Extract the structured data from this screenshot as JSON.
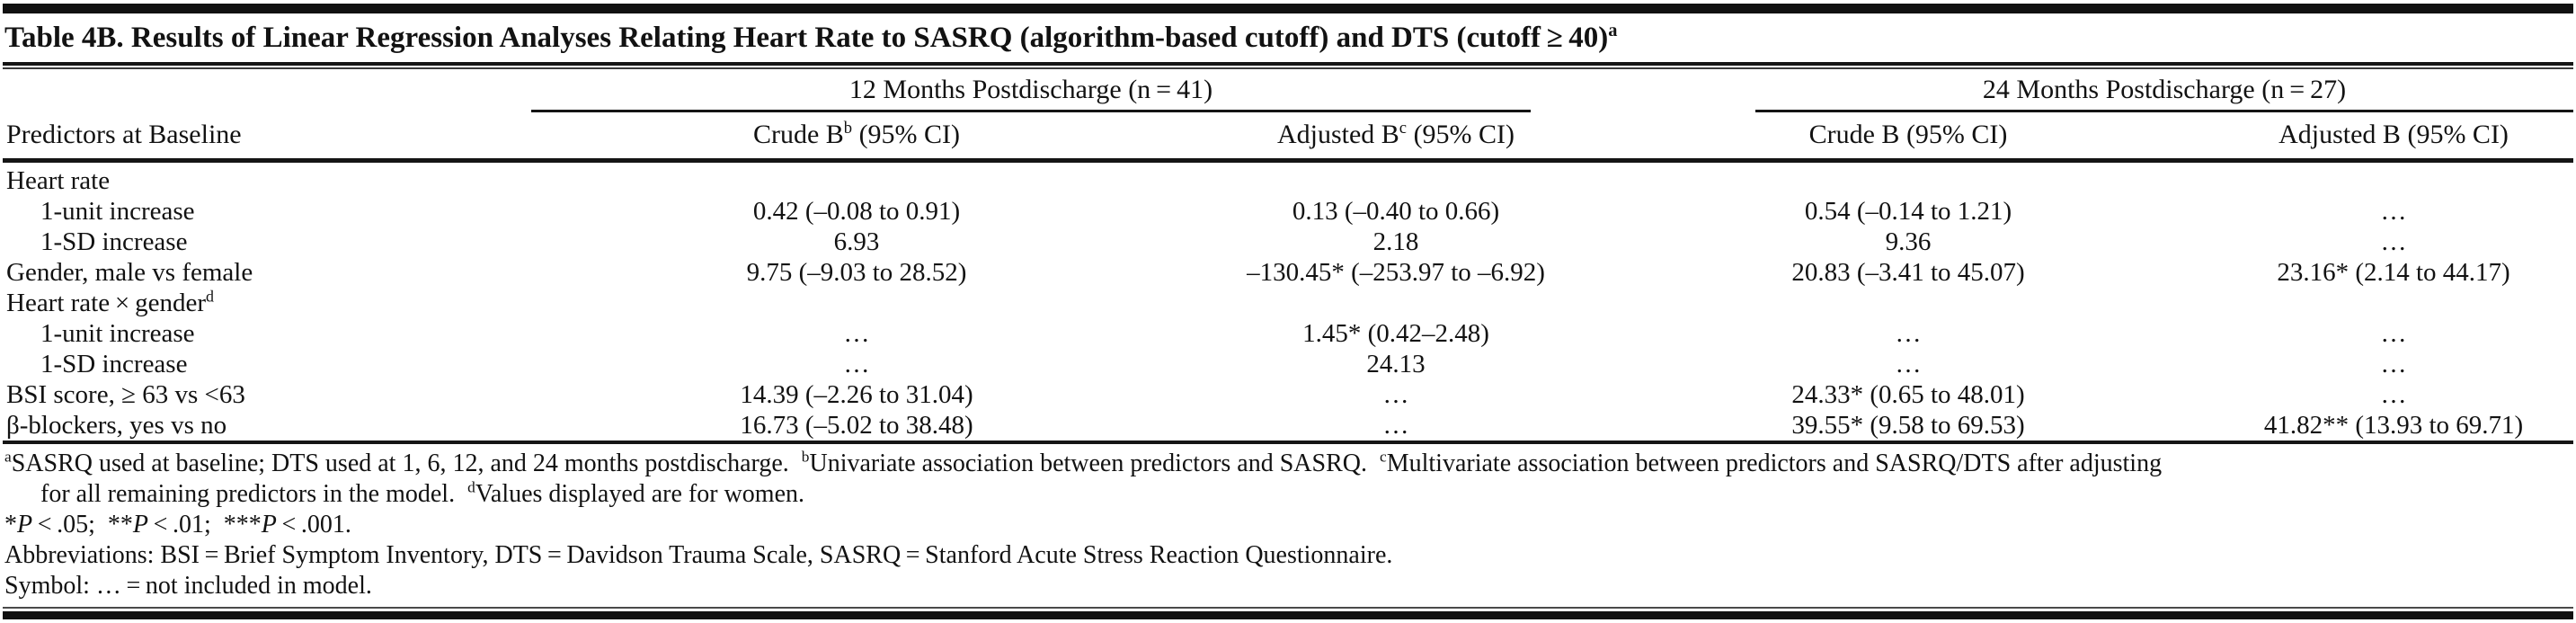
{
  "title": {
    "text": "Table 4B. Results of Linear Regression Analyses Relating Heart Rate to SASRQ (algorithm-based cutoff) and DTS (cutoff ≥ 40)",
    "sup": "a"
  },
  "groups": [
    {
      "label": "12 Months Postdischarge (n = 41)"
    },
    {
      "label": "24 Months Postdischarge (n = 27)"
    }
  ],
  "stub_header": "Predictors at Baseline",
  "columns": [
    {
      "pre": "Crude B",
      "sup": "b",
      "post": " (95% CI)"
    },
    {
      "pre": "Adjusted B",
      "sup": "c",
      "post": " (95% CI)"
    },
    {
      "pre": "Crude B",
      "sup": "",
      "post": " (95% CI)"
    },
    {
      "pre": "Adjusted B",
      "sup": "",
      "post": " (95% CI)"
    }
  ],
  "rows": [
    {
      "label": "Heart rate",
      "sup": "",
      "indent": false,
      "cells": [
        "",
        "",
        "",
        ""
      ]
    },
    {
      "label": "1-unit increase",
      "sup": "",
      "indent": true,
      "cells": [
        "0.42 (–0.08 to 0.91)",
        "0.13 (–0.40 to 0.66)",
        "0.54 (–0.14 to 1.21)",
        "…"
      ]
    },
    {
      "label": "1-SD increase",
      "sup": "",
      "indent": true,
      "cells": [
        "6.93",
        "2.18",
        "9.36",
        "…"
      ]
    },
    {
      "label": "Gender, male vs female",
      "sup": "",
      "indent": false,
      "cells": [
        "9.75 (–9.03 to 28.52)",
        "–130.45* (–253.97 to –6.92)",
        "20.83 (–3.41 to 45.07)",
        "23.16* (2.14 to 44.17)"
      ]
    },
    {
      "label": "Heart rate × gender",
      "sup": "d",
      "indent": false,
      "cells": [
        "",
        "",
        "",
        ""
      ]
    },
    {
      "label": "1-unit increase",
      "sup": "",
      "indent": true,
      "cells": [
        "…",
        "1.45* (0.42–2.48)",
        "…",
        "…"
      ]
    },
    {
      "label": "1-SD increase",
      "sup": "",
      "indent": true,
      "cells": [
        "…",
        "24.13",
        "…",
        "…"
      ]
    },
    {
      "label": "BSI score, ≥ 63 vs <63",
      "sup": "",
      "indent": false,
      "cells": [
        "14.39 (–2.26 to 31.04)",
        "…",
        "24.33* (0.65 to 48.01)",
        "…"
      ]
    },
    {
      "label": "β-blockers, yes vs no",
      "sup": "",
      "indent": false,
      "cells": [
        "16.73 (–5.02 to 38.48)",
        "…",
        "39.55* (9.58 to 69.53)",
        "41.82** (13.93 to 69.71)"
      ]
    }
  ],
  "footnotes": [
    {
      "rich": "^{a}SASRQ used at baseline; DTS used at 1, 6, 12, and 24 months postdischarge.  ^{b}Univariate association between predictors and SASRQ.  ^{c}Multivariate association between predictors and SASRQ/DTS after adjusting",
      "indent": false
    },
    {
      "rich": "for all remaining predictors in the model.  ^{d}Values displayed are for women.",
      "indent": true
    },
    {
      "rich": "*~{P} < .05;  **~{P} < .01;  ***~{P} < .001.",
      "indent": false
    },
    {
      "rich": "Abbreviations: BSI = Brief Symptom Inventory, DTS = Davidson Trauma Scale, SASRQ = Stanford Acute Stress Reaction Questionnaire.",
      "indent": false
    },
    {
      "rich": "Symbol: … = not included in model.",
      "indent": false
    }
  ]
}
